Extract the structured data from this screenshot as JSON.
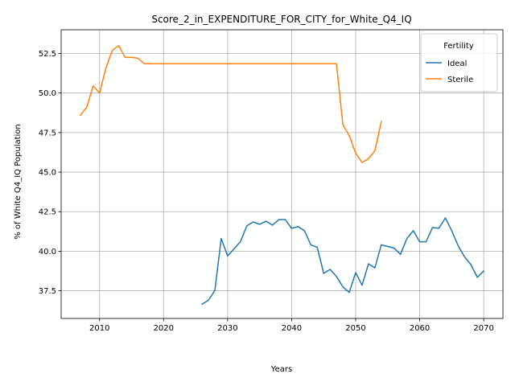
{
  "chart_data": {
    "type": "line",
    "title": "Score_2_in_EXPENDITURE_FOR_CITY_for_White_Q4_IQ",
    "xlabel": "Years",
    "ylabel": "% of White Q4_IQ Population",
    "xlim": [
      2004,
      2073
    ],
    "ylim": [
      35.75,
      54.0
    ],
    "x_ticks": [
      2010,
      2020,
      2030,
      2040,
      2050,
      2060,
      2070
    ],
    "x_tick_labels": [
      "2010",
      "2020",
      "2030",
      "2040",
      "2050",
      "2060",
      "2070"
    ],
    "y_ticks": [
      37.5,
      40.0,
      42.5,
      45.0,
      47.5,
      50.0,
      52.5
    ],
    "y_tick_labels": [
      "37.5",
      "40.0",
      "42.5",
      "45.0",
      "47.5",
      "50.0",
      "52.5"
    ],
    "grid": true,
    "legend": {
      "title": "Fertility",
      "position": "top-right"
    },
    "series": [
      {
        "name": "Ideal",
        "color": "#1f77b4",
        "x": [
          2026,
          2027,
          2028,
          2029,
          2030,
          2031,
          2032,
          2033,
          2034,
          2035,
          2036,
          2037,
          2038,
          2039,
          2040,
          2041,
          2042,
          2043,
          2044,
          2045,
          2046,
          2047,
          2048,
          2049,
          2050,
          2051,
          2052,
          2053,
          2054,
          2055,
          2056,
          2057,
          2058,
          2059,
          2060,
          2061,
          2062,
          2063,
          2064,
          2065,
          2066,
          2067,
          2068,
          2069,
          2070
        ],
        "values": [
          36.65,
          36.9,
          37.5,
          40.8,
          39.7,
          40.15,
          40.6,
          41.6,
          41.85,
          41.7,
          41.9,
          41.65,
          42.0,
          42.0,
          41.45,
          41.55,
          41.3,
          40.4,
          40.25,
          38.6,
          38.85,
          38.4,
          37.75,
          37.4,
          38.65,
          37.85,
          39.2,
          38.95,
          40.4,
          40.3,
          40.2,
          39.8,
          40.8,
          41.3,
          40.6,
          40.6,
          41.5,
          41.45,
          42.1,
          41.3,
          40.35,
          39.65,
          39.15,
          38.35,
          38.75
        ]
      },
      {
        "name": "Sterile",
        "color": "#ff7f0e",
        "x": [
          2007,
          2008,
          2009,
          2010,
          2011,
          2012,
          2013,
          2014,
          2015,
          2016,
          2017,
          2018,
          2019,
          2020,
          2021,
          2022,
          2023,
          2024,
          2025,
          2026,
          2027,
          2028,
          2029,
          2030,
          2031,
          2032,
          2033,
          2034,
          2035,
          2036,
          2037,
          2038,
          2039,
          2040,
          2041,
          2042,
          2043,
          2044,
          2045,
          2046,
          2047,
          2048,
          2049,
          2050,
          2051,
          2052,
          2053,
          2054
        ],
        "values": [
          48.6,
          49.1,
          50.45,
          50.0,
          51.6,
          52.7,
          53.0,
          52.25,
          52.25,
          52.2,
          51.85,
          51.85,
          51.85,
          51.85,
          51.85,
          51.85,
          51.85,
          51.85,
          51.85,
          51.85,
          51.85,
          51.85,
          51.85,
          51.85,
          51.85,
          51.85,
          51.85,
          51.85,
          51.85,
          51.85,
          51.85,
          51.85,
          51.85,
          51.85,
          51.85,
          51.85,
          51.85,
          51.85,
          51.85,
          51.85,
          51.85,
          48.0,
          47.3,
          46.2,
          45.6,
          45.85,
          46.35,
          48.2
        ]
      }
    ]
  }
}
